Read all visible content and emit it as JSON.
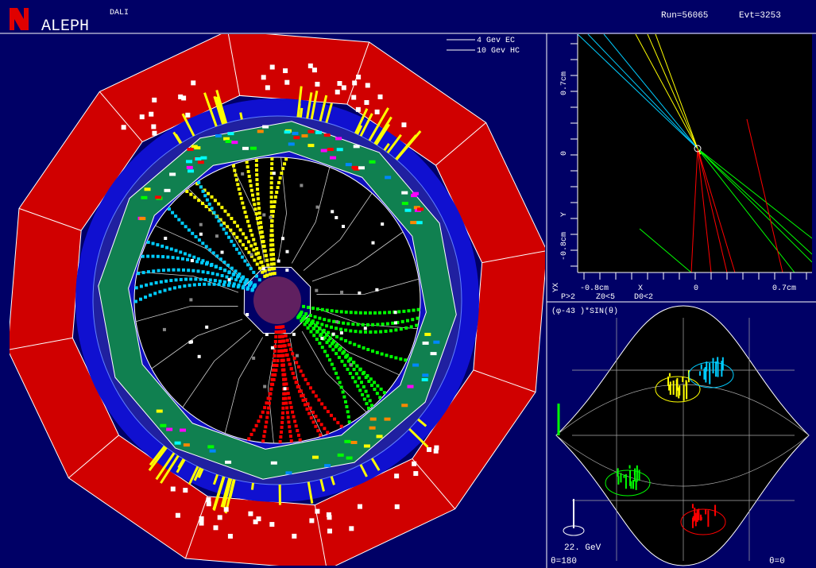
{
  "header": {
    "logo": "ALEPH",
    "program": "DALI",
    "run": "Run=56065",
    "event": "Evt=3253"
  },
  "scale_legend": [
    "4  Gev EC",
    "10 Gev HC"
  ],
  "yx_view": {
    "y_ticks": [
      "0.7cm",
      "0",
      "-0.8cm"
    ],
    "y_label": "Y",
    "x_label": "X",
    "x_ticks": [
      "-0.8cm",
      "0",
      "0.7cm"
    ],
    "view": "YX",
    "cuts": [
      "P>2",
      "Z0<5",
      "D0<2"
    ]
  },
  "lego_view": {
    "axis_label": "(φ-43 )*SIN(θ)",
    "energy_scale": "22. GeV",
    "left": "θ=180",
    "right": "θ=0"
  }
}
